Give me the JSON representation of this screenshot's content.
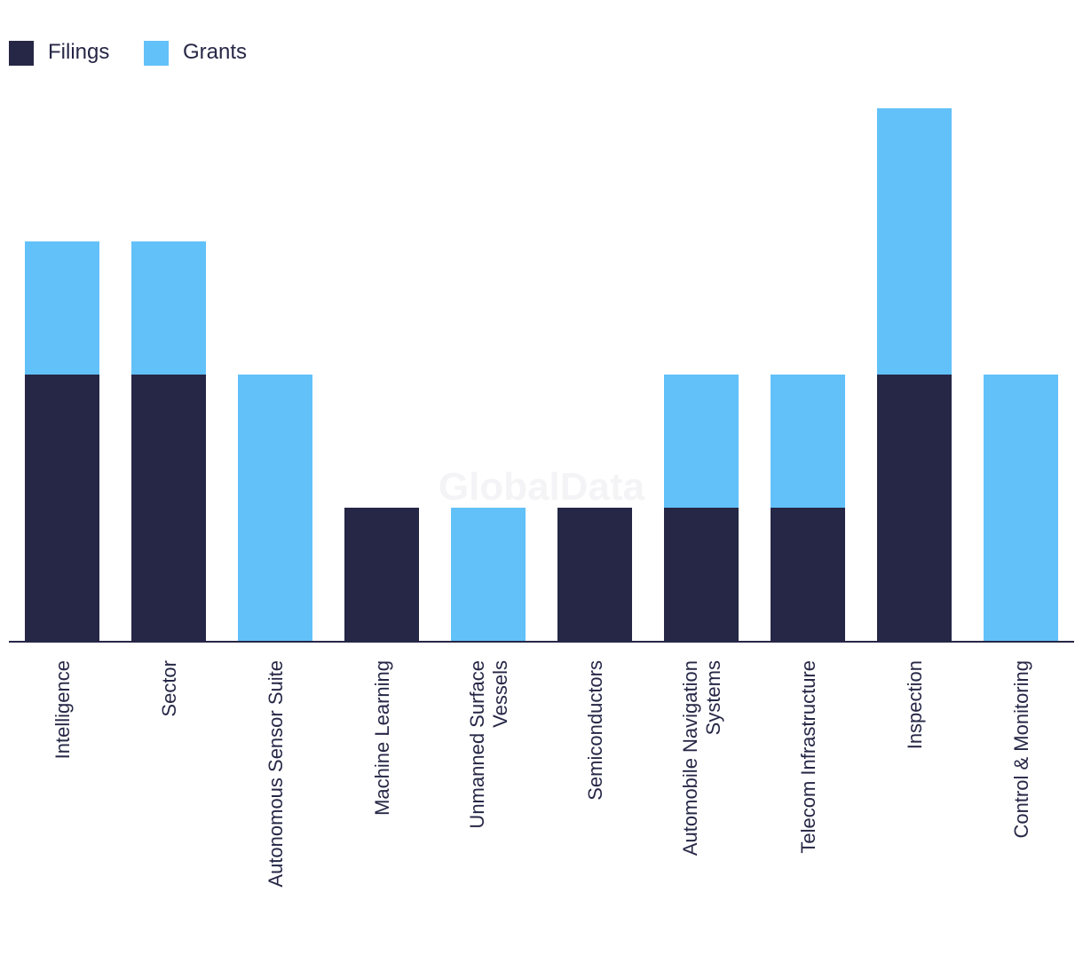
{
  "chart_data": {
    "type": "bar",
    "stacked": true,
    "title": "",
    "xlabel": "",
    "ylabel": "",
    "categories": [
      "Intelligence",
      "Sector",
      "Autonomous Sensor Suite",
      "Machine Learning",
      "Unmanned Surface Vessels",
      "Semiconductors",
      "Automobile Navigation Systems",
      "Telecom Infrastructure",
      "Inspection",
      "Control & Monitoring"
    ],
    "category_label_lines": [
      [
        "Intelligence"
      ],
      [
        "Sector"
      ],
      [
        "Autonomous Sensor Suite"
      ],
      [
        "Machine Learning"
      ],
      [
        "Unmanned Surface",
        "Vessels"
      ],
      [
        "Semiconductors"
      ],
      [
        "Automobile Navigation",
        "Systems"
      ],
      [
        "Telecom Infrastructure"
      ],
      [
        "Inspection"
      ],
      [
        "Control & Monitoring"
      ]
    ],
    "series": [
      {
        "name": "Filings",
        "color": "#262746",
        "values": [
          2,
          2,
          0,
          1,
          0,
          1,
          1,
          1,
          2,
          0
        ]
      },
      {
        "name": "Grants",
        "color": "#62c1f9",
        "values": [
          1,
          1,
          2,
          0,
          1,
          0,
          1,
          1,
          2,
          2
        ]
      }
    ],
    "ylim": [
      0,
      4.2
    ],
    "grid": false,
    "legend_position": "top-left",
    "watermark": "GlobalData"
  }
}
